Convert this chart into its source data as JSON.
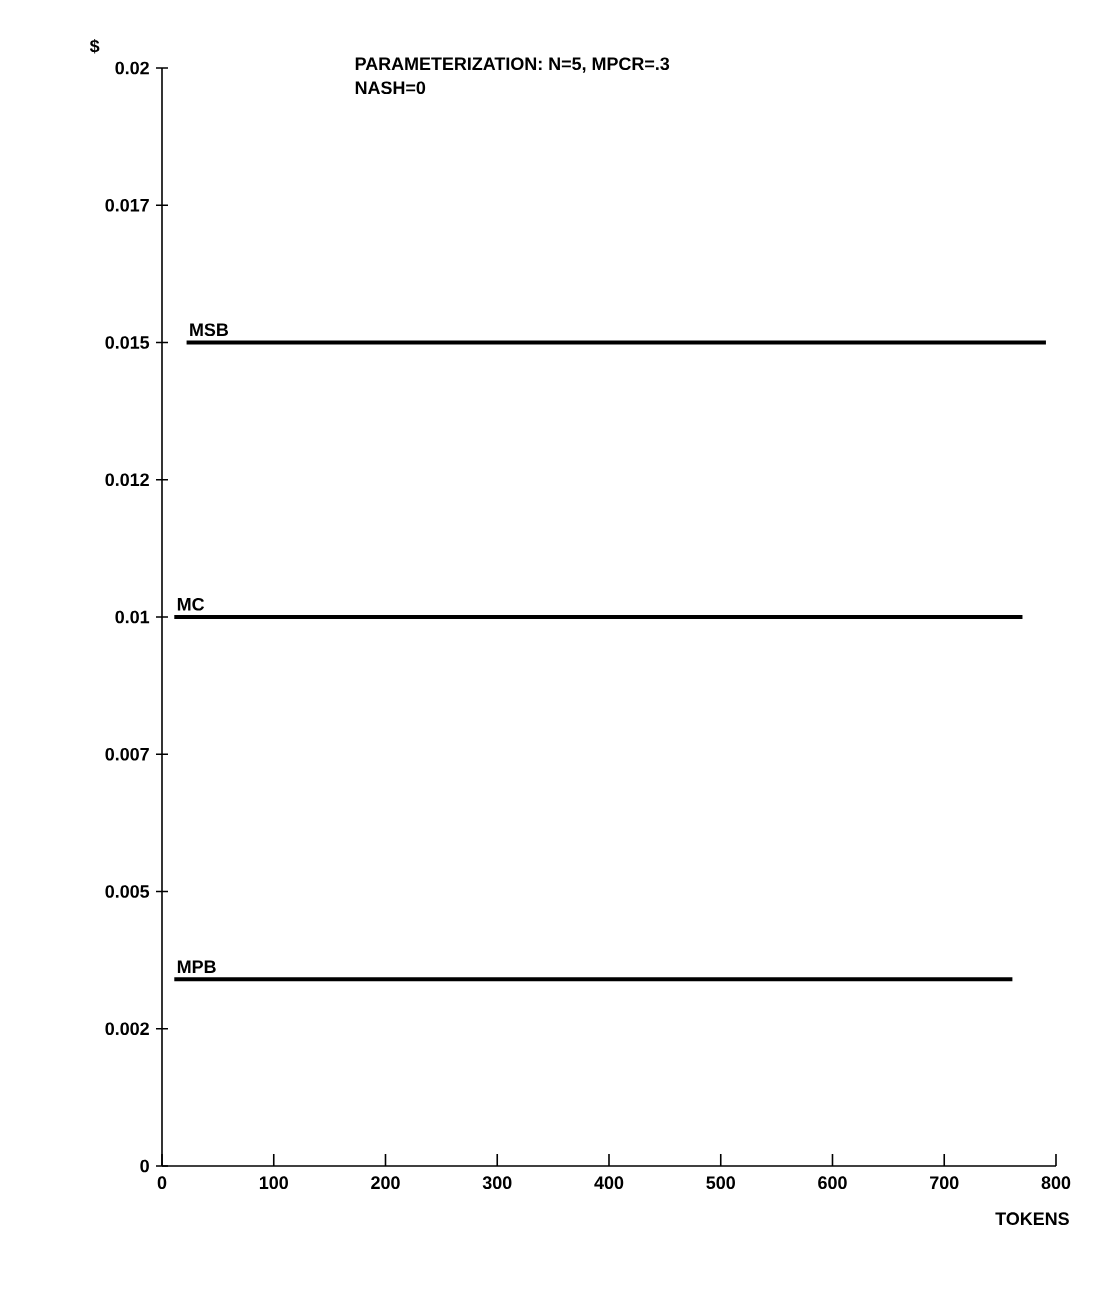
{
  "chart_data": {
    "type": "line",
    "xlabel": "TOKENS",
    "ylabel": "$",
    "annotations": [
      "PARAMETERIZATION: N=5, MPCR=.3",
      "NASH=0"
    ],
    "series": [
      {
        "name": "MSB",
        "color": "#000000",
        "x": [
          22,
          791
        ],
        "values": [
          0.015,
          0.015
        ]
      },
      {
        "name": "MC",
        "color": "#000000",
        "x": [
          11,
          770
        ],
        "values": [
          0.01,
          0.01
        ]
      },
      {
        "name": "MPB",
        "color": "#000000",
        "x": [
          11,
          761
        ],
        "values": [
          0.0034,
          0.0034
        ]
      }
    ],
    "xlim": [
      0,
      800
    ],
    "xticks": [
      0,
      100,
      200,
      300,
      400,
      500,
      600,
      700,
      800
    ],
    "ylim": [
      0,
      0.02
    ],
    "yticks": [
      0,
      {
        "value": 0.0025,
        "label": "0.002"
      },
      0.005,
      {
        "value": 0.0075,
        "label": "0.007"
      },
      0.01,
      {
        "value": 0.0125,
        "label": "0.012"
      },
      0.015,
      {
        "value": 0.0175,
        "label": "0.017"
      },
      0.02
    ],
    "marker": "none",
    "line_style": "solid",
    "grid": false,
    "legend": false
  }
}
